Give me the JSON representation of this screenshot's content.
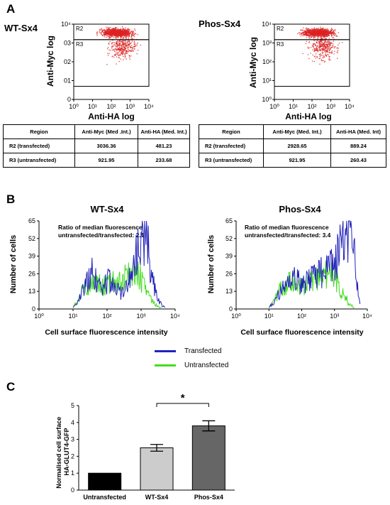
{
  "panels": {
    "a": {
      "label": "A"
    },
    "b": {
      "label": "B"
    },
    "c": {
      "label": "C"
    }
  },
  "chart_data": [
    {
      "id": "scatter-wt",
      "type": "scatter",
      "title": "WT-Sx4",
      "xlabel": "Anti-HA log",
      "ylabel": "Anti-Myc log",
      "x_scale": "log",
      "y_scale": "log",
      "xlim": [
        1,
        10000
      ],
      "ylim": [
        1,
        10000
      ],
      "x_ticks": [
        "10⁰",
        "10¹",
        "10²",
        "10³",
        "10⁴"
      ],
      "y_ticks": [
        "0",
        "01",
        "02",
        "03",
        "10⁴"
      ],
      "gates": [
        {
          "name": "R2",
          "x_range": [
            1,
            10000
          ],
          "y_range": [
            1500,
            10000
          ]
        },
        {
          "name": "R3",
          "x_range": [
            1,
            10000
          ],
          "y_range": [
            5,
            1500
          ]
        }
      ],
      "color": "#dd2222"
    },
    {
      "id": "scatter-phos",
      "type": "scatter",
      "title": "Phos-Sx4",
      "xlabel": "Anti-HA log",
      "ylabel": "Anti-Myc log",
      "x_scale": "log",
      "y_scale": "log",
      "xlim": [
        1,
        10000
      ],
      "ylim": [
        1,
        10000
      ],
      "x_ticks": [
        "10⁰",
        "10¹",
        "10²",
        "10³",
        "10⁴"
      ],
      "y_ticks": [
        "10⁰",
        "10¹",
        "10²",
        "10³",
        "10⁴"
      ],
      "gates": [
        {
          "name": "R2",
          "x_range": [
            1,
            10000
          ],
          "y_range": [
            1500,
            10000
          ]
        },
        {
          "name": "R3",
          "x_range": [
            1,
            10000
          ],
          "y_range": [
            5,
            1500
          ]
        }
      ],
      "color": "#dd2222"
    },
    {
      "id": "table-wt",
      "type": "table",
      "columns": [
        "Region",
        "Anti-Myc (Med .Int.)",
        "Anti-HA (Med. Int.)"
      ],
      "rows": [
        [
          "R2  (transfected)",
          "3036.36",
          "481.23"
        ],
        [
          "R3 (untransfected)",
          "921.95",
          "233.68"
        ]
      ]
    },
    {
      "id": "table-phos",
      "type": "table",
      "columns": [
        "Region",
        "Anti-Myc (Med. Int.)",
        "Anti-HA (Med. Int)"
      ],
      "rows": [
        [
          "R2  (transfected)",
          "2928.65",
          "889.24"
        ],
        [
          "R3 (untransfected)",
          "921.95",
          "260.43"
        ]
      ]
    },
    {
      "id": "hist-wt",
      "type": "line",
      "title": "WT-Sx4",
      "xlabel": "Cell surface fluorescence intensity",
      "ylabel": "Number of cells",
      "x_scale": "log",
      "xlim": [
        1,
        10000
      ],
      "ylim": [
        0,
        65
      ],
      "x_ticks": [
        "10⁰",
        "10¹",
        "10²",
        "10³",
        "10⁴"
      ],
      "y_ticks": [
        "0",
        "13",
        "26",
        "39",
        "52",
        "65"
      ],
      "annotation": [
        "Ratio of median fluorescence",
        "untransfected/transfected: 2.1"
      ],
      "series": [
        {
          "name": "Transfected",
          "color": "#2222bb",
          "x": [
            10,
            15,
            20,
            25,
            30,
            35,
            40,
            50,
            60,
            80,
            100,
            130,
            160,
            200,
            250,
            300,
            400,
            500,
            600,
            700,
            800,
            900,
            1000,
            1100,
            1200,
            1300,
            1500,
            1700,
            2000,
            2500,
            3000,
            4000,
            5000
          ],
          "y": [
            1,
            8,
            15,
            20,
            24,
            30,
            26,
            22,
            18,
            17,
            20,
            22,
            18,
            15,
            12,
            14,
            20,
            25,
            30,
            38,
            45,
            52,
            60,
            50,
            44,
            56,
            52,
            40,
            28,
            15,
            8,
            3,
            1
          ]
        },
        {
          "name": "Untransfected",
          "color": "#44dd22",
          "x": [
            10,
            15,
            20,
            30,
            40,
            60,
            80,
            100,
            150,
            200,
            300,
            400,
            500,
            700,
            900,
            1000,
            1200,
            1500,
            2000,
            2500,
            3000,
            4000
          ],
          "y": [
            1,
            8,
            14,
            18,
            20,
            18,
            17,
            18,
            20,
            22,
            24,
            26,
            27,
            28,
            25,
            22,
            18,
            12,
            7,
            4,
            2,
            1
          ]
        }
      ]
    },
    {
      "id": "hist-phos",
      "type": "line",
      "title": "Phos-Sx4",
      "xlabel": "Cell surface fluorescence intensity",
      "ylabel": "Number of cells",
      "x_scale": "log",
      "xlim": [
        1,
        10000
      ],
      "ylim": [
        0,
        65
      ],
      "x_ticks": [
        "10⁰",
        "10¹",
        "10²",
        "10³",
        "10⁴"
      ],
      "y_ticks": [
        "0",
        "13",
        "26",
        "39",
        "52",
        "65"
      ],
      "annotation": [
        "Ratio of median fluorescence",
        "untransfected/transfected: 3.4"
      ],
      "series": [
        {
          "name": "Transfected",
          "color": "#2222bb",
          "x": [
            10,
            15,
            20,
            30,
            40,
            60,
            80,
            100,
            150,
            200,
            300,
            400,
            500,
            700,
            900,
            1000,
            1200,
            1500,
            2000,
            2500,
            3000,
            3500,
            4000,
            5000,
            6000
          ],
          "y": [
            1,
            6,
            12,
            17,
            20,
            22,
            20,
            18,
            20,
            22,
            24,
            27,
            28,
            30,
            32,
            34,
            38,
            44,
            50,
            56,
            60,
            52,
            38,
            18,
            4
          ]
        },
        {
          "name": "Untransfected",
          "color": "#44dd22",
          "x": [
            10,
            15,
            20,
            30,
            40,
            60,
            80,
            100,
            150,
            200,
            300,
            400,
            500,
            700,
            900,
            1000,
            1200,
            1500,
            2000,
            2500,
            3000,
            4000
          ],
          "y": [
            1,
            6,
            13,
            17,
            20,
            19,
            18,
            18,
            19,
            21,
            23,
            25,
            26,
            28,
            26,
            24,
            20,
            15,
            10,
            6,
            3,
            1
          ]
        }
      ]
    },
    {
      "id": "bar-c",
      "type": "bar",
      "ylabel": "Normalised cell surface HA-GLUT4-GFP",
      "ylabel_lines": [
        "Normalised cell surface",
        "HA-GLUT4-GFP"
      ],
      "ylim": [
        0,
        5
      ],
      "y_ticks": [
        "0",
        "1",
        "2",
        "3",
        "4",
        "5"
      ],
      "categories": [
        "Untransfected",
        "WT-Sx4",
        "Phos-Sx4"
      ],
      "values": [
        1.0,
        2.5,
        3.8
      ],
      "errors": [
        0,
        0.2,
        0.3
      ],
      "colors": [
        "#000000",
        "#cccccc",
        "#666666"
      ],
      "significance": {
        "from": "WT-Sx4",
        "to": "Phos-Sx4",
        "label": "*"
      }
    }
  ],
  "legend": [
    {
      "label": "Transfected",
      "color": "#2222bb"
    },
    {
      "label": "Untransfected",
      "color": "#44dd22"
    }
  ]
}
